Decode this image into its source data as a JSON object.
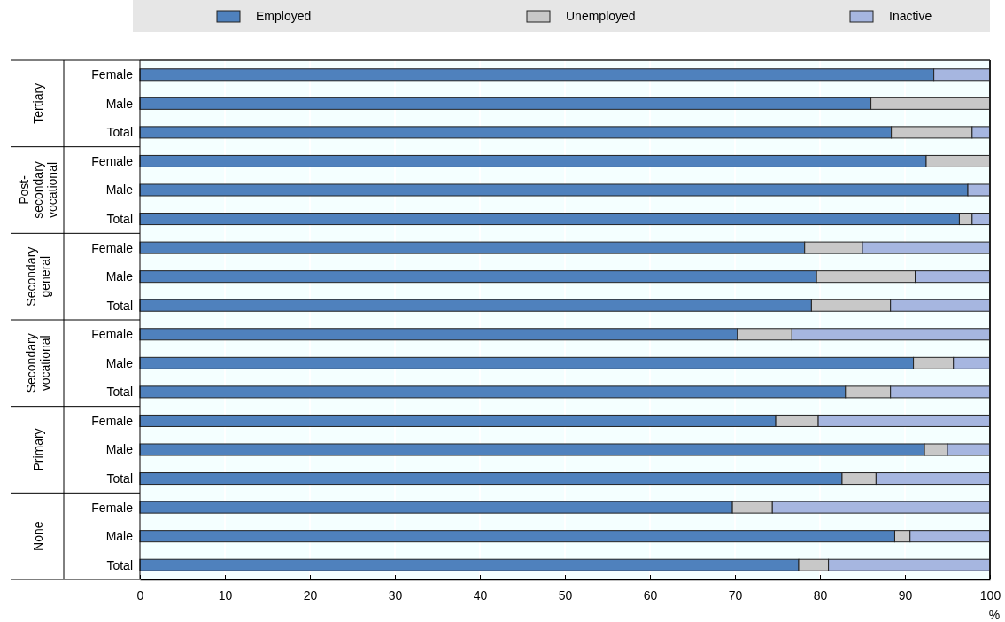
{
  "chart_data": {
    "type": "bar",
    "orientation": "horizontal",
    "stacked": true,
    "categories": [
      "Female",
      "Male",
      "Total",
      "Female",
      "Male",
      "Total",
      "Female",
      "Male",
      "Total",
      "Female",
      "Male",
      "Total",
      "Female",
      "Male",
      "Total",
      "Female",
      "Male",
      "Total"
    ],
    "annotations": [
      "Tertiary",
      "Post-secondary vocational",
      "Secondary general",
      "Secondary vocational",
      "Primary",
      "None"
    ],
    "series": [
      {
        "name": "Employed",
        "color": "#4f81bd",
        "values": [
          93.4,
          86.0,
          88.4,
          92.5,
          97.4,
          96.4,
          78.2,
          79.6,
          79.0,
          70.3,
          91.0,
          83.0,
          74.8,
          92.3,
          82.6,
          69.7,
          88.8,
          77.5
        ]
      },
      {
        "name": "Unemployed",
        "color": "#c8c8c8",
        "values": [
          0,
          14.0,
          9.5,
          7.5,
          0,
          1.5,
          6.8,
          11.6,
          9.3,
          6.4,
          4.7,
          5.3,
          5.0,
          2.7,
          4.0,
          4.7,
          1.8,
          3.5
        ]
      },
      {
        "name": "Inactive",
        "color": "#a6b6e0",
        "values": [
          6.6,
          0,
          2.1,
          0,
          2.6,
          2.1,
          15.0,
          8.8,
          11.7,
          23.3,
          4.3,
          11.7,
          20.2,
          5.0,
          13.4,
          25.6,
          9.4,
          19.0
        ]
      }
    ],
    "xlabel": "%",
    "xlim": [
      0,
      100
    ],
    "xticks": [
      0,
      10,
      20,
      30,
      40,
      50,
      60,
      70,
      80,
      90,
      100
    ],
    "grid": "x",
    "legend": "top"
  }
}
